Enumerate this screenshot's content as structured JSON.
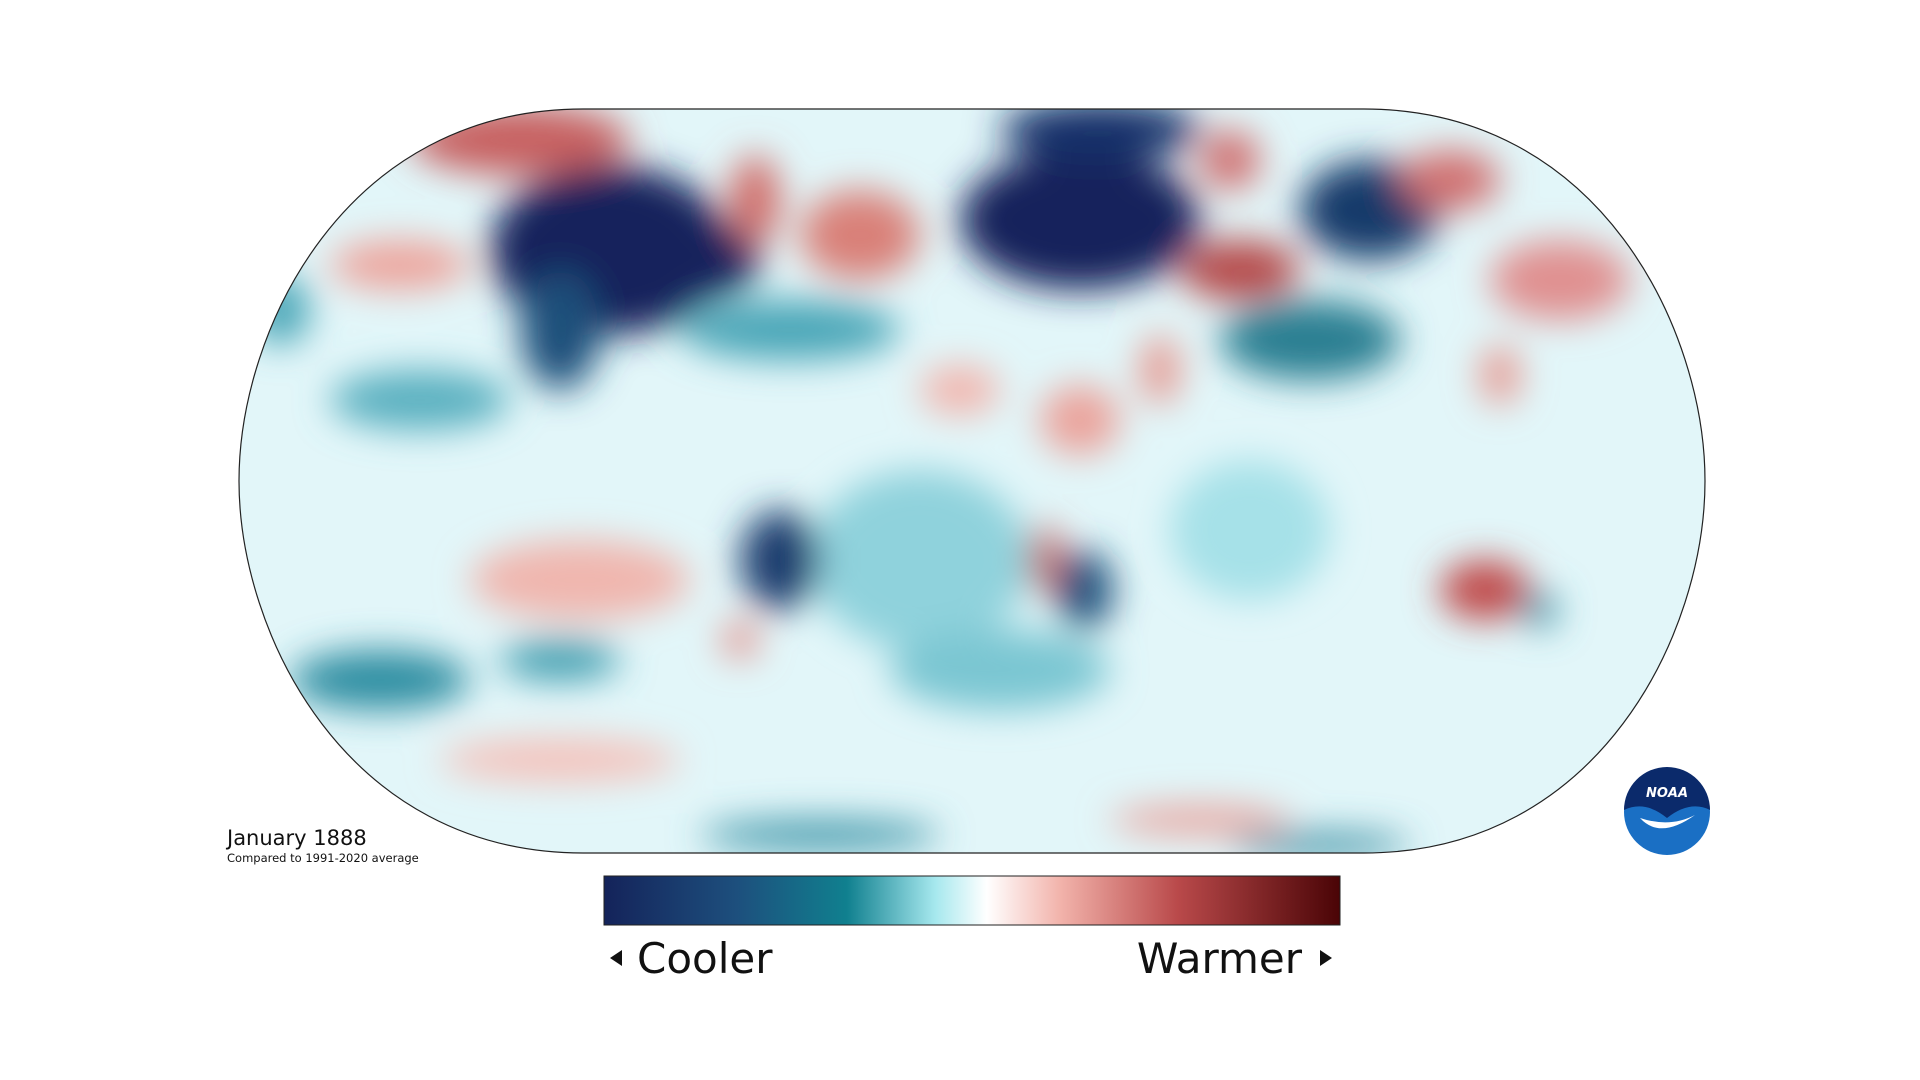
{
  "map": {
    "title": "January 1888",
    "subtitle": "Compared to 1991-2020 average"
  },
  "legend": {
    "low_label": "Cooler",
    "high_label": "Warmer"
  },
  "logo": {
    "text": "NOAA"
  }
}
